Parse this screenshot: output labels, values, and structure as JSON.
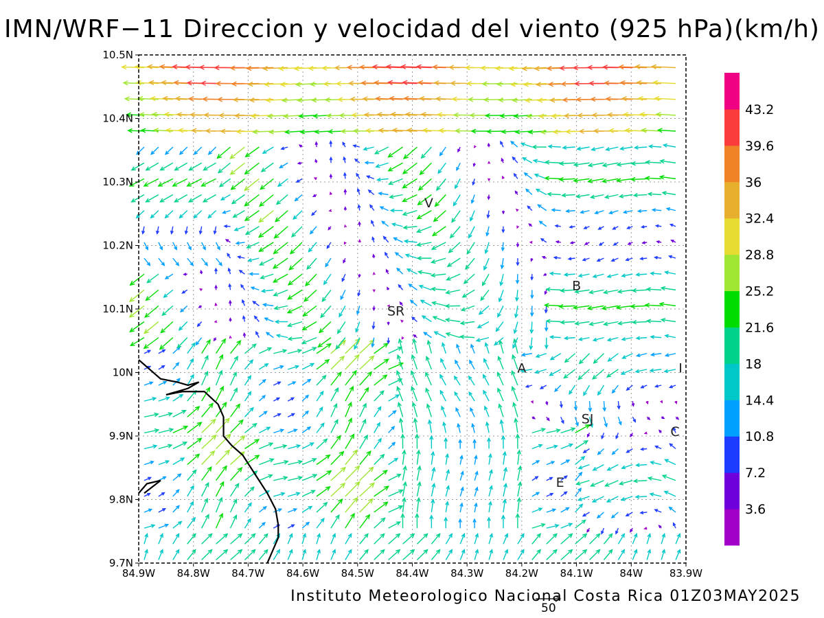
{
  "title": "IMN/WRF−11 Direccion y velocidad del viento (925 hPa)(km/h)",
  "credit": "Instituto Meteorologico Nacional Costa Rica 01Z03MAY2025",
  "reference_vector": {
    "label": "50",
    "value": 50
  },
  "axes": {
    "lon_range": [
      -84.9,
      -83.9
    ],
    "lat_range": [
      9.7,
      10.5
    ],
    "x_ticks": [
      {
        "value": -84.9,
        "label": "84.9W"
      },
      {
        "value": -84.8,
        "label": "84.8W"
      },
      {
        "value": -84.7,
        "label": "84.7W"
      },
      {
        "value": -84.6,
        "label": "84.6W"
      },
      {
        "value": -84.5,
        "label": "84.5W"
      },
      {
        "value": -84.4,
        "label": "84.4W"
      },
      {
        "value": -84.3,
        "label": "84.3W"
      },
      {
        "value": -84.2,
        "label": "84.2W"
      },
      {
        "value": -84.1,
        "label": "84.1W"
      },
      {
        "value": -84.0,
        "label": "84W"
      },
      {
        "value": -83.9,
        "label": "83.9W"
      }
    ],
    "y_ticks": [
      {
        "value": 9.7,
        "label": "9.7N"
      },
      {
        "value": 9.8,
        "label": "9.8N"
      },
      {
        "value": 9.9,
        "label": "9.9N"
      },
      {
        "value": 10.0,
        "label": "10N"
      },
      {
        "value": 10.1,
        "label": "10.1N"
      },
      {
        "value": 10.2,
        "label": "10.2N"
      },
      {
        "value": 10.3,
        "label": "10.3N"
      },
      {
        "value": 10.4,
        "label": "10.4N"
      },
      {
        "value": 10.5,
        "label": "10.5N"
      }
    ],
    "grid": true
  },
  "colorbar": {
    "levels": [
      "3.6",
      "7.2",
      "10.8",
      "14.4",
      "18",
      "21.6",
      "25.2",
      "28.8",
      "32.4",
      "36",
      "39.6",
      "43.2"
    ],
    "colors": [
      "#a000c8",
      "#6e00dc",
      "#1e3cff",
      "#00a0ff",
      "#00c8c8",
      "#00d28c",
      "#00dc00",
      "#a0e632",
      "#e6dc32",
      "#e6af2d",
      "#f08228",
      "#fa3c3c",
      "#f00082"
    ]
  },
  "places": [
    {
      "label": "V",
      "lon": -84.37,
      "lat": 10.26
    },
    {
      "label": "SR",
      "lon": -84.43,
      "lat": 10.09
    },
    {
      "label": "B",
      "lon": -84.1,
      "lat": 10.13
    },
    {
      "label": "A",
      "lon": -84.2,
      "lat": 10.0
    },
    {
      "label": "I",
      "lon": -83.91,
      "lat": 10.0
    },
    {
      "label": "SJ",
      "lon": -84.08,
      "lat": 9.92
    },
    {
      "label": "C",
      "lon": -83.92,
      "lat": 9.9
    },
    {
      "label": "E",
      "lon": -84.13,
      "lat": 9.82
    }
  ],
  "coastline": [
    [
      -84.9,
      10.02
    ],
    [
      -84.86,
      9.99
    ],
    [
      -84.83,
      9.985
    ],
    [
      -84.81,
      9.98
    ],
    [
      -84.79,
      9.985
    ],
    [
      -84.81,
      9.975
    ],
    [
      -84.85,
      9.965
    ],
    [
      -84.82,
      9.97
    ],
    [
      -84.78,
      9.97
    ],
    [
      -84.755,
      9.95
    ],
    [
      -84.745,
      9.93
    ],
    [
      -84.745,
      9.9
    ],
    [
      -84.73,
      9.885
    ],
    [
      -84.71,
      9.87
    ],
    [
      -84.695,
      9.85
    ],
    [
      -84.68,
      9.83
    ],
    [
      -84.665,
      9.81
    ],
    [
      -84.65,
      9.785
    ],
    [
      -84.645,
      9.76
    ],
    [
      -84.645,
      9.74
    ],
    [
      -84.655,
      9.72
    ],
    [
      -84.665,
      9.7
    ]
  ],
  "peninsula": [
    [
      -84.9,
      9.81
    ],
    [
      -84.885,
      9.825
    ],
    [
      -84.86,
      9.83
    ],
    [
      -84.89,
      9.81
    ]
  ],
  "wind_field": {
    "grid_spacing_deg": 0.025,
    "regimes": [
      {
        "name": "northern-easterlies",
        "lat_min": 10.36,
        "u": -36,
        "v": 1
      },
      {
        "name": "central-convergence",
        "lat_min": 10.05,
        "lat_max": 10.36
      },
      {
        "name": "southern-westerlies",
        "lat_max": 10.05
      }
    ]
  }
}
